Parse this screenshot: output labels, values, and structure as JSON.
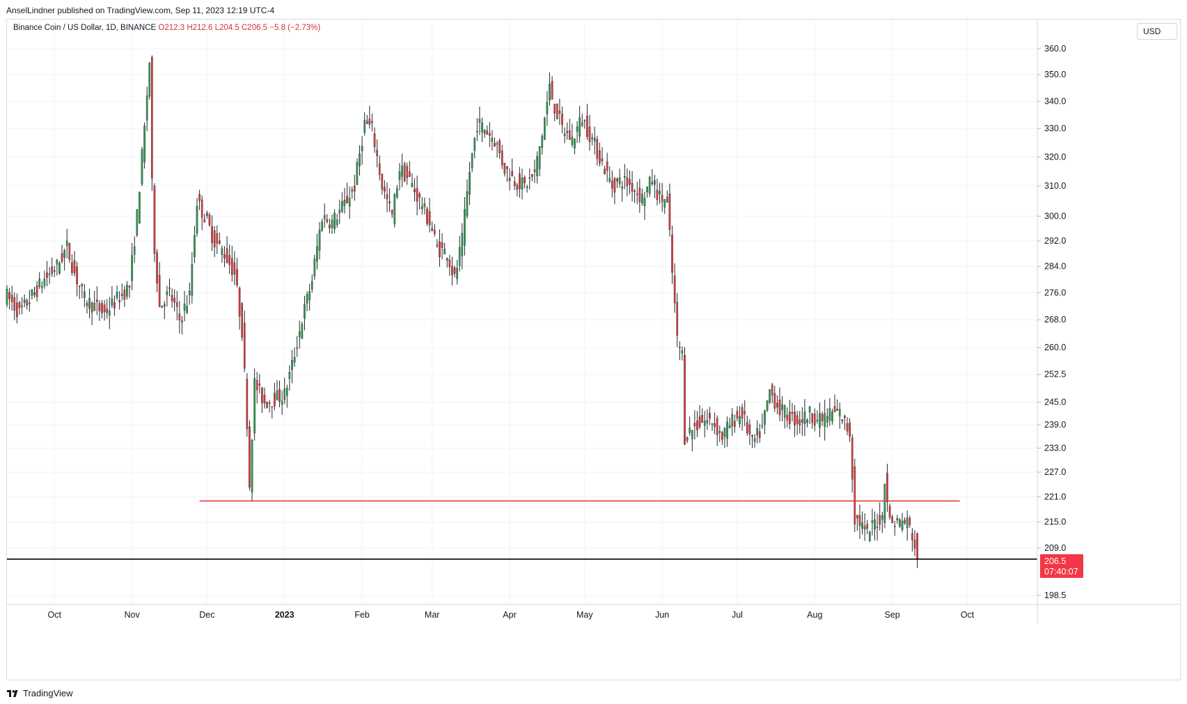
{
  "header": {
    "published": "AnselLindner published on TradingView.com, Sep 11, 2023 12:19 UTC-4"
  },
  "legend": {
    "symbol": "Binance Coin / US Dollar, 1D, BINANCE",
    "open": "O212.3",
    "high": "H212.6",
    "low": "L204.5",
    "close": "C206.5",
    "change": "−5.8 (−2.73%)"
  },
  "currency": "USD",
  "price_label": {
    "price": "206.5",
    "countdown": "07:40:07"
  },
  "footer": {
    "brand": "TradingView",
    "logo": "tradingview-logo"
  },
  "colors": {
    "up": "#26a69a",
    "up_fill": "#2e9e4f",
    "down": "#e03b3b",
    "support": "#e53935",
    "current": "#000000",
    "label_bg": "#f23645"
  },
  "chart_data": {
    "type": "candlestick",
    "title": "Binance Coin / US Dollar, 1D, BINANCE",
    "y_scale": "log",
    "ylim": [
      193,
      372
    ],
    "y_ticks": [
      "360.0",
      "350.0",
      "340.0",
      "330.0",
      "320.0",
      "310.0",
      "300.0",
      "292.0",
      "284.0",
      "276.0",
      "268.0",
      "260.0",
      "252.5",
      "245.0",
      "239.0",
      "233.0",
      "227.0",
      "221.0",
      "215.0",
      "209.0",
      "198.5"
    ],
    "x_ticks": [
      {
        "label": "Oct",
        "date": "2022-10-01"
      },
      {
        "label": "Nov",
        "date": "2022-11-01"
      },
      {
        "label": "Dec",
        "date": "2022-12-01"
      },
      {
        "label": "2023",
        "date": "2023-01-01",
        "bold": true
      },
      {
        "label": "Feb",
        "date": "2023-02-01"
      },
      {
        "label": "Mar",
        "date": "2023-03-01"
      },
      {
        "label": "Apr",
        "date": "2023-04-01"
      },
      {
        "label": "May",
        "date": "2023-05-01"
      },
      {
        "label": "Jun",
        "date": "2023-06-01"
      },
      {
        "label": "Jul",
        "date": "2023-07-01"
      },
      {
        "label": "Aug",
        "date": "2023-08-01"
      },
      {
        "label": "Sep",
        "date": "2023-09-01"
      },
      {
        "label": "Oct",
        "date": "2023-10-01"
      }
    ],
    "x_range": [
      "2022-09-12",
      "2023-10-29"
    ],
    "support_line": {
      "price": 220.0,
      "from": "2022-11-28",
      "to": "2023-09-28"
    },
    "current_price_line": 206.5,
    "close_path": [
      [
        "2022-09-12",
        275
      ],
      [
        "2022-09-17",
        270
      ],
      [
        "2022-09-22",
        275
      ],
      [
        "2022-09-27",
        280
      ],
      [
        "2022-10-02",
        284
      ],
      [
        "2022-10-06",
        290
      ],
      [
        "2022-10-09",
        282
      ],
      [
        "2022-10-13",
        274
      ],
      [
        "2022-10-17",
        272
      ],
      [
        "2022-10-21",
        270
      ],
      [
        "2022-10-26",
        274
      ],
      [
        "2022-10-31",
        278
      ],
      [
        "2022-11-03",
        300
      ],
      [
        "2022-11-06",
        330
      ],
      [
        "2022-11-08",
        355
      ],
      [
        "2022-11-09",
        310
      ],
      [
        "2022-11-10",
        290
      ],
      [
        "2022-11-12",
        272
      ],
      [
        "2022-11-16",
        276
      ],
      [
        "2022-11-20",
        268
      ],
      [
        "2022-11-24",
        275
      ],
      [
        "2022-11-27",
        305
      ],
      [
        "2022-11-30",
        300
      ],
      [
        "2022-12-04",
        292
      ],
      [
        "2022-12-08",
        288
      ],
      [
        "2022-12-12",
        282
      ],
      [
        "2022-12-15",
        265
      ],
      [
        "2022-12-17",
        240
      ],
      [
        "2022-12-18",
        224
      ],
      [
        "2022-12-20",
        250
      ],
      [
        "2022-12-24",
        245
      ],
      [
        "2022-12-28",
        246
      ],
      [
        "2023-01-01",
        247
      ],
      [
        "2023-01-04",
        255
      ],
      [
        "2023-01-08",
        268
      ],
      [
        "2023-01-12",
        280
      ],
      [
        "2023-01-16",
        300
      ],
      [
        "2023-01-20",
        298
      ],
      [
        "2023-01-25",
        304
      ],
      [
        "2023-01-29",
        310
      ],
      [
        "2023-02-02",
        332
      ],
      [
        "2023-02-05",
        330
      ],
      [
        "2023-02-09",
        310
      ],
      [
        "2023-02-13",
        300
      ],
      [
        "2023-02-16",
        316
      ],
      [
        "2023-02-20",
        312
      ],
      [
        "2023-02-24",
        305
      ],
      [
        "2023-02-28",
        298
      ],
      [
        "2023-03-03",
        290
      ],
      [
        "2023-03-07",
        288
      ],
      [
        "2023-03-10",
        280
      ],
      [
        "2023-03-13",
        292
      ],
      [
        "2023-03-16",
        315
      ],
      [
        "2023-03-19",
        332
      ],
      [
        "2023-03-22",
        330
      ],
      [
        "2023-03-26",
        326
      ],
      [
        "2023-03-30",
        316
      ],
      [
        "2023-04-03",
        312
      ],
      [
        "2023-04-07",
        310
      ],
      [
        "2023-04-11",
        314
      ],
      [
        "2023-04-14",
        328
      ],
      [
        "2023-04-17",
        345
      ],
      [
        "2023-04-19",
        338
      ],
      [
        "2023-04-22",
        330
      ],
      [
        "2023-04-26",
        326
      ],
      [
        "2023-04-30",
        334
      ],
      [
        "2023-05-04",
        326
      ],
      [
        "2023-05-08",
        318
      ],
      [
        "2023-05-12",
        310
      ],
      [
        "2023-05-16",
        312
      ],
      [
        "2023-05-20",
        310
      ],
      [
        "2023-05-24",
        306
      ],
      [
        "2023-05-28",
        312
      ],
      [
        "2023-05-31",
        306
      ],
      [
        "2023-06-03",
        305
      ],
      [
        "2023-06-05",
        282
      ],
      [
        "2023-06-07",
        262
      ],
      [
        "2023-06-09",
        258
      ],
      [
        "2023-06-10",
        236
      ],
      [
        "2023-06-13",
        238
      ],
      [
        "2023-06-17",
        240
      ],
      [
        "2023-06-21",
        240
      ],
      [
        "2023-06-25",
        236
      ],
      [
        "2023-06-29",
        240
      ],
      [
        "2023-07-03",
        242
      ],
      [
        "2023-07-07",
        234
      ],
      [
        "2023-07-11",
        238
      ],
      [
        "2023-07-14",
        248
      ],
      [
        "2023-07-18",
        243
      ],
      [
        "2023-07-22",
        241
      ],
      [
        "2023-07-26",
        240
      ],
      [
        "2023-07-30",
        242
      ],
      [
        "2023-08-03",
        240
      ],
      [
        "2023-08-07",
        242
      ],
      [
        "2023-08-11",
        242
      ],
      [
        "2023-08-15",
        237
      ],
      [
        "2023-08-17",
        216
      ],
      [
        "2023-08-19",
        215
      ],
      [
        "2023-08-22",
        212
      ],
      [
        "2023-08-25",
        215
      ],
      [
        "2023-08-28",
        216
      ],
      [
        "2023-08-29",
        226
      ],
      [
        "2023-08-31",
        215
      ],
      [
        "2023-09-03",
        215
      ],
      [
        "2023-09-07",
        215
      ],
      [
        "2023-09-09",
        212
      ],
      [
        "2023-09-11",
        206.5
      ]
    ],
    "last_candle": {
      "date": "2023-09-11",
      "open": 212.3,
      "high": 212.6,
      "low": 204.5,
      "close": 206.5
    }
  }
}
